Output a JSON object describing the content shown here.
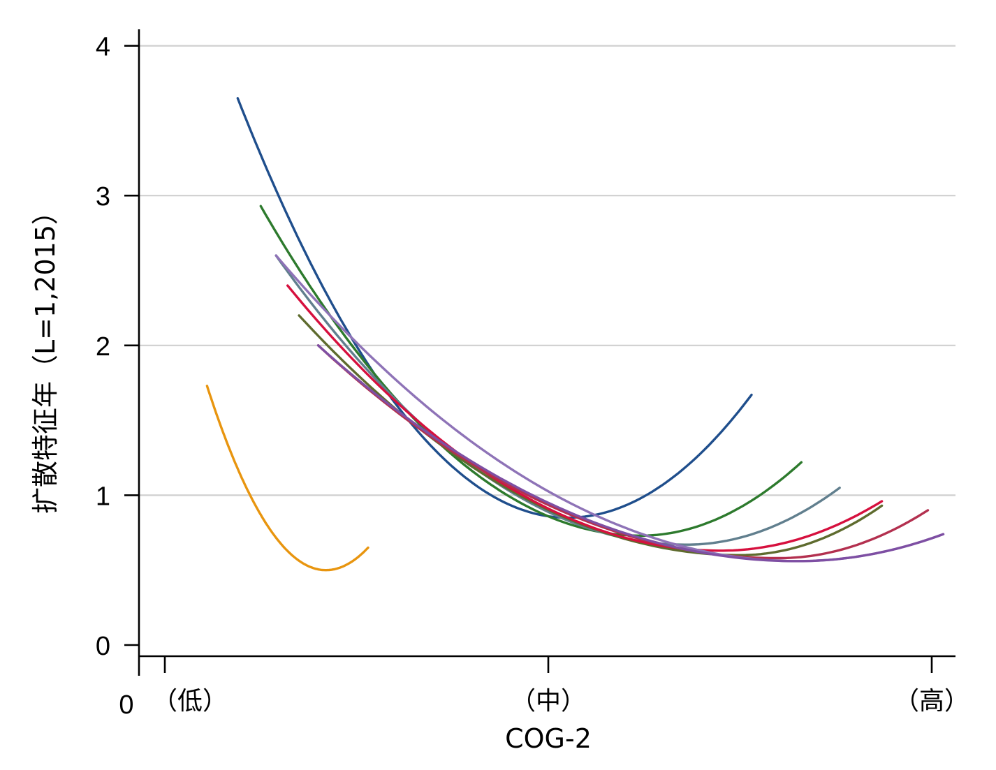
{
  "chart_data": {
    "type": "line",
    "xlabel": "COG-2",
    "ylabel": "扩散特征年（L=1,2015）",
    "xlim": [
      -0.07,
      2.06
    ],
    "ylim": [
      -0.07,
      4.17
    ],
    "x_ticks": [
      {
        "value": 0,
        "label": "（低）"
      },
      {
        "value": 1,
        "label": "（中）"
      },
      {
        "value": 2,
        "label": "（高）"
      }
    ],
    "x_origin_label": "0",
    "y_ticks": [
      0,
      1,
      2,
      3,
      4
    ],
    "grid": "horizontal",
    "legend": "none",
    "series": [
      {
        "color": "#E8950F",
        "x": [
          0.11,
          0.42,
          0.53
        ],
        "y": [
          1.73,
          0.5,
          0.65
        ],
        "vertex": [
          0.42,
          0.5
        ]
      },
      {
        "color": "#1F4E8C",
        "x": [
          0.19,
          1.05,
          1.53
        ],
        "y": [
          3.65,
          0.85,
          1.67
        ],
        "vertex": [
          1.05,
          0.85
        ]
      },
      {
        "color": "#2D7A2D",
        "x": [
          0.25,
          1.24,
          1.66
        ],
        "y": [
          2.93,
          0.73,
          1.22
        ],
        "vertex": [
          1.24,
          0.73
        ]
      },
      {
        "color": "#617F8E",
        "x": [
          0.29,
          1.36,
          1.76
        ],
        "y": [
          2.6,
          0.67,
          1.05
        ],
        "vertex": [
          1.36,
          0.67
        ]
      },
      {
        "color": "#5E6B2E",
        "x": [
          0.35,
          1.5,
          1.87
        ],
        "y": [
          2.2,
          0.6,
          0.93
        ],
        "vertex": [
          1.5,
          0.6
        ]
      },
      {
        "color": "#D6103E",
        "x": [
          0.32,
          1.45,
          1.87
        ],
        "y": [
          2.4,
          0.63,
          0.96
        ],
        "vertex": [
          1.45,
          0.63
        ]
      },
      {
        "color": "#B3304F",
        "x": [
          0.4,
          1.6,
          1.99
        ],
        "y": [
          2.0,
          0.58,
          0.9
        ],
        "vertex": [
          1.6,
          0.58
        ]
      },
      {
        "color": "#8E73B7",
        "x": [
          0.29,
          1.65,
          2.03
        ],
        "y": [
          2.6,
          0.56,
          0.74
        ],
        "vertex": [
          1.65,
          0.56
        ]
      },
      {
        "color": "#7E4FA3",
        "x": [
          0.4,
          1.65,
          2.03
        ],
        "y": [
          2.0,
          0.56,
          0.74
        ],
        "vertex": [
          1.65,
          0.56
        ]
      }
    ]
  },
  "colors": {
    "grid": "#cfcfcf",
    "axis": "#000000",
    "text": "#000000"
  }
}
